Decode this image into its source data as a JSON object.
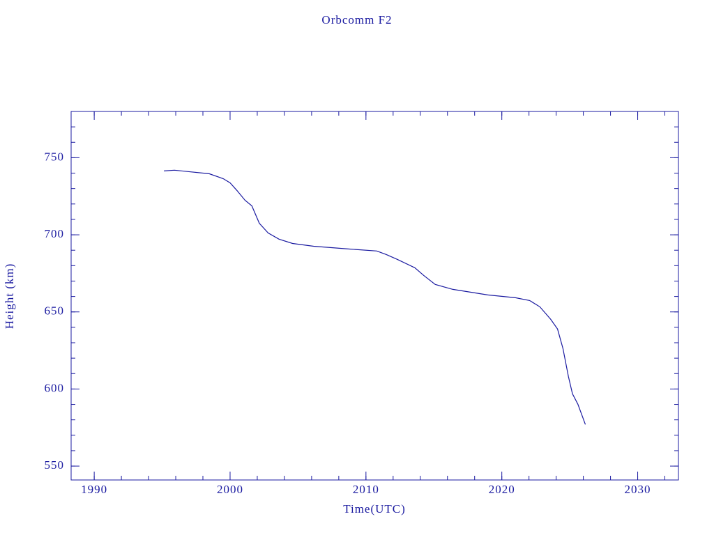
{
  "chart_data": {
    "type": "line",
    "title": "Orbcomm F2",
    "x_label": "Time(UTC)",
    "y_label": "Height (km)",
    "color": "#1a1aa0",
    "xlim": [
      1988.3,
      2033.0
    ],
    "ylim": [
      541,
      780
    ],
    "xticks": [
      1990,
      2000,
      2010,
      2020,
      2030
    ],
    "yticks": [
      550,
      600,
      650,
      700,
      750
    ],
    "xminorticks": [
      1990,
      1992,
      1994,
      1996,
      1998,
      2000,
      2002,
      2004,
      2006,
      2008,
      2010,
      2012,
      2014,
      2016,
      2018,
      2020,
      2022,
      2024,
      2026,
      2028,
      2030,
      2032
    ],
    "yminorticks": [
      550,
      560,
      570,
      580,
      590,
      600,
      610,
      620,
      630,
      640,
      650,
      660,
      670,
      680,
      690,
      700,
      710,
      720,
      730,
      740,
      750,
      760,
      770
    ],
    "x": [
      1995.13,
      1995.9,
      1996.9,
      1998.46,
      1999.5,
      2000.0,
      2000.5,
      2001.1,
      2001.6,
      2002.15,
      2002.8,
      2003.6,
      2004.6,
      2006.15,
      2008.7,
      2010.8,
      2011.5,
      2012.3,
      2013.6,
      2014.25,
      2015.1,
      2016.4,
      2018.97,
      2021.0,
      2022.05,
      2022.8,
      2023.6,
      2024.1,
      2024.5,
      2024.9,
      2025.2,
      2025.6,
      2026.15
    ],
    "values": [
      741.4,
      741.9,
      741.0,
      739.6,
      736.4,
      733.7,
      728.8,
      722.4,
      718.8,
      707.5,
      701.2,
      697.2,
      694.4,
      692.6,
      690.8,
      689.5,
      687.2,
      684.1,
      678.6,
      673.7,
      667.8,
      664.6,
      661.0,
      659.2,
      657.4,
      653.3,
      645.2,
      638.9,
      626.2,
      608.1,
      596.9,
      590.1,
      577.0
    ]
  }
}
